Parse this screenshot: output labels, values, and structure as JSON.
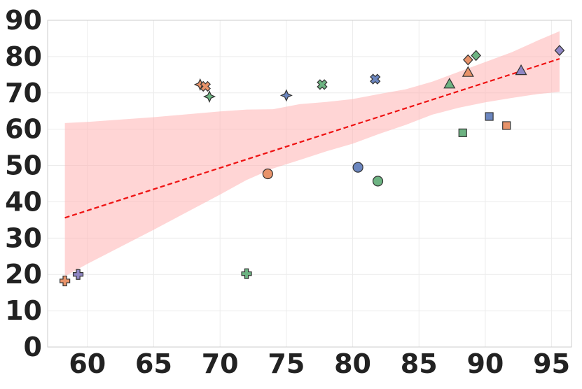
{
  "chart_data": {
    "type": "scatter",
    "title": "",
    "xlabel": "",
    "ylabel": "",
    "xlim": [
      57,
      96.5
    ],
    "ylim": [
      0,
      90
    ],
    "xticks": [
      60,
      65,
      70,
      75,
      80,
      85,
      90,
      95
    ],
    "yticks": [
      0,
      10,
      20,
      30,
      40,
      50,
      60,
      70,
      80,
      90
    ],
    "grid": true,
    "colors": {
      "orange": "#e8936a",
      "green": "#6db382",
      "blue": "#6b86bf",
      "purple": "#8f86c4",
      "fit_line": "#ee1111",
      "band": "#ffb3b3"
    },
    "points": [
      {
        "x": 58.3,
        "y": 18.2,
        "marker": "plus",
        "color": "orange"
      },
      {
        "x": 59.3,
        "y": 20.0,
        "marker": "plus",
        "color": "purple"
      },
      {
        "x": 72.0,
        "y": 20.2,
        "marker": "plus",
        "color": "green"
      },
      {
        "x": 68.5,
        "y": 72.3,
        "marker": "star",
        "color": "orange"
      },
      {
        "x": 69.2,
        "y": 69.0,
        "marker": "star",
        "color": "green"
      },
      {
        "x": 75.0,
        "y": 69.3,
        "marker": "star",
        "color": "blue"
      },
      {
        "x": 68.9,
        "y": 71.8,
        "marker": "x",
        "color": "orange"
      },
      {
        "x": 77.7,
        "y": 72.3,
        "marker": "x",
        "color": "green"
      },
      {
        "x": 81.7,
        "y": 73.8,
        "marker": "x",
        "color": "blue"
      },
      {
        "x": 73.6,
        "y": 47.7,
        "marker": "circle",
        "color": "orange"
      },
      {
        "x": 80.4,
        "y": 49.5,
        "marker": "circle",
        "color": "blue"
      },
      {
        "x": 81.9,
        "y": 45.7,
        "marker": "circle",
        "color": "green"
      },
      {
        "x": 88.3,
        "y": 59.0,
        "marker": "square",
        "color": "green"
      },
      {
        "x": 90.3,
        "y": 63.5,
        "marker": "square",
        "color": "blue"
      },
      {
        "x": 91.6,
        "y": 61.0,
        "marker": "square",
        "color": "orange"
      },
      {
        "x": 87.3,
        "y": 72.5,
        "marker": "triangle",
        "color": "green"
      },
      {
        "x": 88.7,
        "y": 75.7,
        "marker": "triangle",
        "color": "orange"
      },
      {
        "x": 92.7,
        "y": 76.2,
        "marker": "triangle",
        "color": "purple"
      },
      {
        "x": 88.7,
        "y": 79.1,
        "marker": "diamond",
        "color": "orange"
      },
      {
        "x": 89.3,
        "y": 80.3,
        "marker": "diamond",
        "color": "green"
      },
      {
        "x": 95.6,
        "y": 81.7,
        "marker": "diamond",
        "color": "purple"
      }
    ],
    "fit_line": {
      "x": [
        58.3,
        95.6
      ],
      "y": [
        35.6,
        79.4
      ],
      "style": "dashed"
    },
    "confidence_band": {
      "x": [
        58.3,
        60,
        65,
        70,
        72,
        74,
        76,
        78,
        80,
        82,
        84,
        86,
        88,
        90,
        92,
        94,
        95.6
      ],
      "upper": [
        61.7,
        62.0,
        63.3,
        64.9,
        65.4,
        65.5,
        66.9,
        67.5,
        68.3,
        69.7,
        71.0,
        73.1,
        75.8,
        78.5,
        81.2,
        84.5,
        87.0
      ],
      "lower": [
        19.5,
        22.9,
        32.3,
        42.0,
        46.0,
        49.2,
        51.5,
        53.9,
        56.0,
        58.7,
        61.2,
        64.0,
        65.9,
        67.4,
        68.6,
        69.7,
        70.3
      ]
    }
  }
}
